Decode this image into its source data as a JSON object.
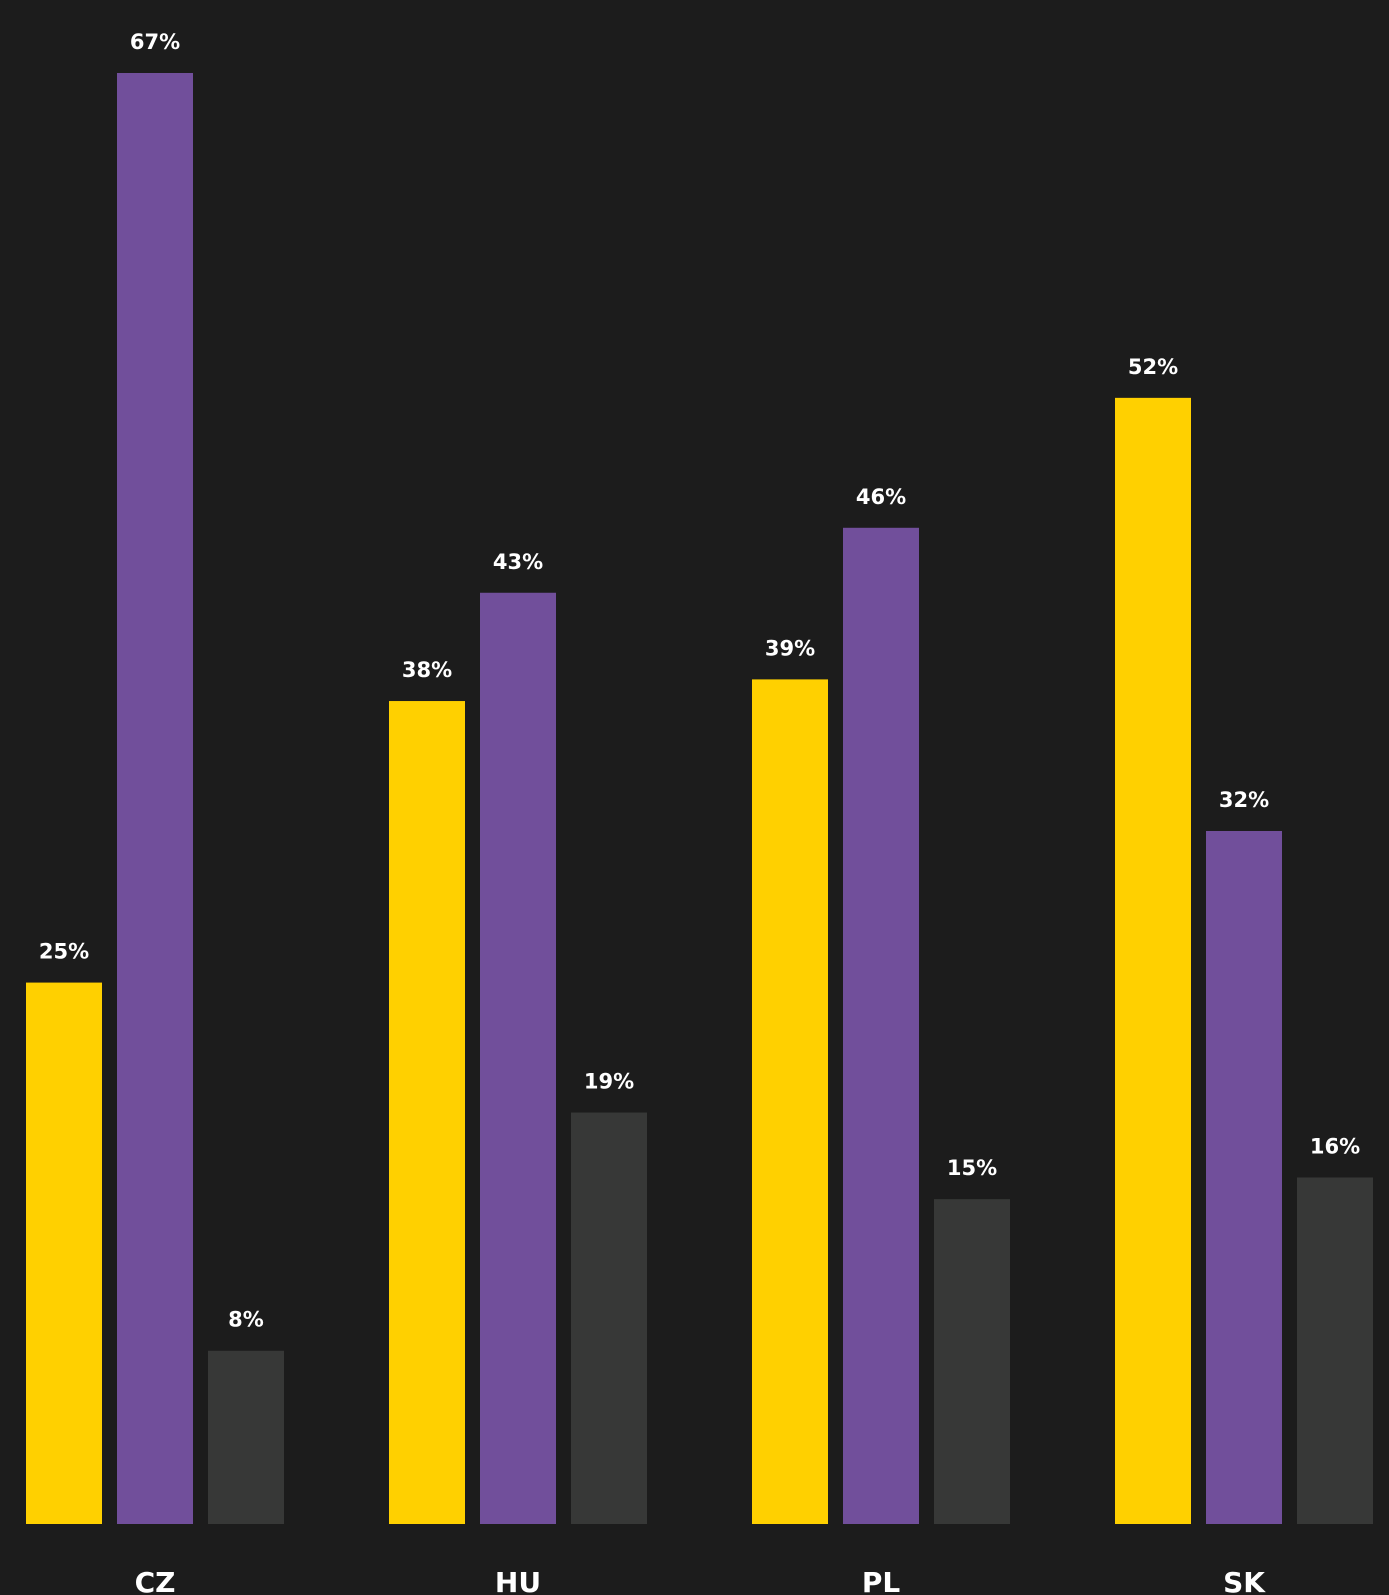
{
  "chart_data": {
    "type": "bar",
    "categories": [
      "CZ",
      "HU",
      "PL",
      "SK"
    ],
    "series": [
      {
        "values": [
          25,
          38,
          39,
          52
        ],
        "labels": [
          "25%",
          "38%",
          "39%",
          "52%"
        ],
        "color": "#ffd000"
      },
      {
        "values": [
          67,
          43,
          46,
          32
        ],
        "labels": [
          "67%",
          "43%",
          "46%",
          "32%"
        ],
        "color": "#714f9b"
      },
      {
        "values": [
          8,
          19,
          15,
          16
        ],
        "labels": [
          "8%",
          "19%",
          "15%",
          "16%"
        ],
        "color": "#373837"
      }
    ],
    "value_suffix": "%",
    "ylim": [
      0,
      67
    ],
    "grid": false,
    "legend": "none",
    "background": "#1c1c1c",
    "label_color": "#ffffff"
  }
}
